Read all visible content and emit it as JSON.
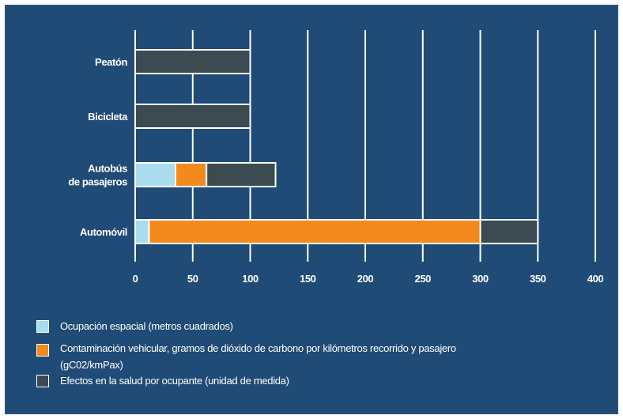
{
  "chart_data": {
    "type": "bar",
    "orientation": "horizontal",
    "stacked": true,
    "categories": [
      "Peatón",
      "Bicicleta",
      "Autobús de pasajeros",
      "Automóvil"
    ],
    "category_lines": [
      [
        "Peatón"
      ],
      [
        "Bicicleta"
      ],
      [
        "Autobús",
        "de pasajeros"
      ],
      [
        "Automóvil"
      ]
    ],
    "series": [
      {
        "name": "Ocupación espacial (metros cuadrados)",
        "color": "#a8dcee",
        "values": [
          0,
          0,
          35,
          12
        ]
      },
      {
        "name": "Contaminación vehicular, gramos de dióxido de carbono por kilómetros recorrido y pasajero (gC02/kmPax)",
        "lines": [
          "Contaminación vehicular, gramos de dióxido de carbono por kilómetros recorrido y pasajero",
          "(gC02/kmPax)"
        ],
        "color": "#f28a1e",
        "values": [
          0,
          0,
          27,
          288
        ]
      },
      {
        "name": "Efectos en la salud por ocupante (unidad de medida)",
        "color": "#3c4a52",
        "values": [
          100,
          100,
          60,
          50
        ]
      }
    ],
    "xlim": [
      0,
      400
    ],
    "xticks": [
      "0",
      "50",
      "100",
      "150",
      "200",
      "250",
      "300",
      "350",
      "400"
    ],
    "grid": true,
    "legend_position": "bottom-left"
  }
}
